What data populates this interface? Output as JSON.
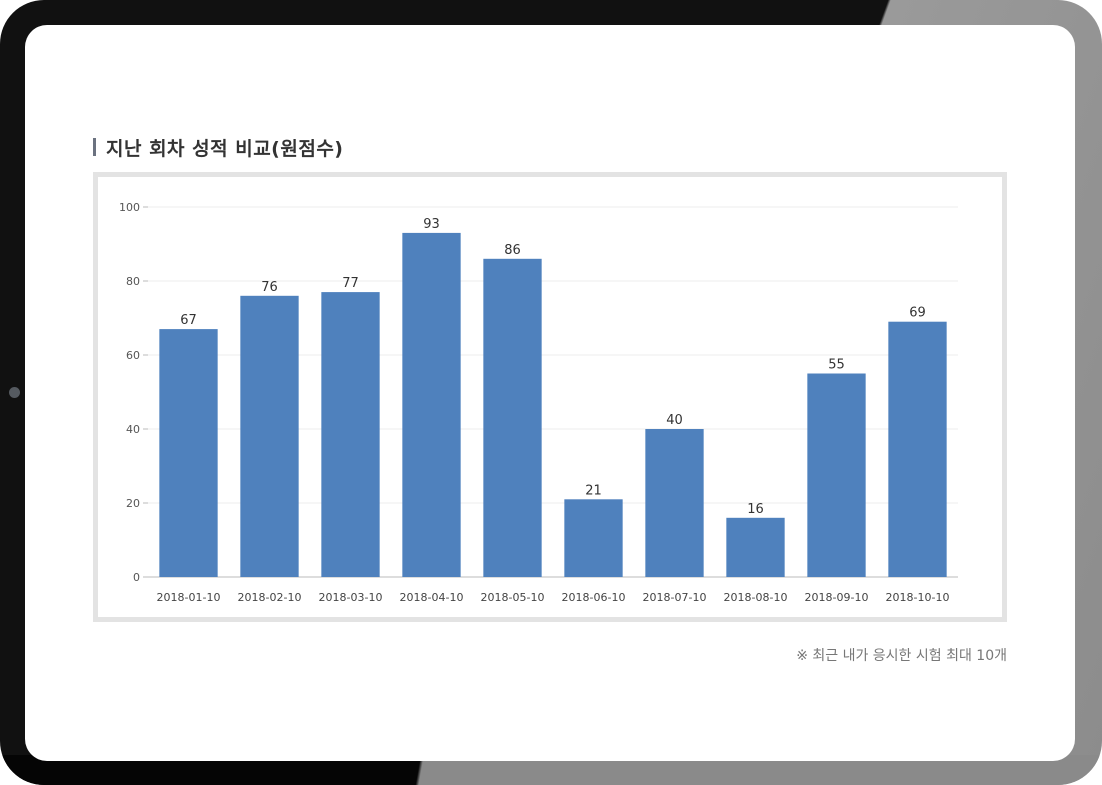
{
  "section": {
    "title": "지난 회차 성적 비교(원점수)",
    "footnote": "※ 최근 내가 응시한 시험 최대 10개"
  },
  "colors": {
    "bar": "#4f81bd",
    "grid": "#eeeeee",
    "axis": "#bbbbbb"
  },
  "chart_data": {
    "type": "bar",
    "categories": [
      "2018-01-10",
      "2018-02-10",
      "2018-03-10",
      "2018-04-10",
      "2018-05-10",
      "2018-06-10",
      "2018-07-10",
      "2018-08-10",
      "2018-09-10",
      "2018-10-10"
    ],
    "values": [
      67,
      76,
      77,
      93,
      86,
      21,
      40,
      16,
      55,
      69
    ],
    "ylim": [
      0,
      100
    ],
    "yticks": [
      0,
      20,
      40,
      60,
      80,
      100
    ],
    "grid": true,
    "data_labels": true
  }
}
